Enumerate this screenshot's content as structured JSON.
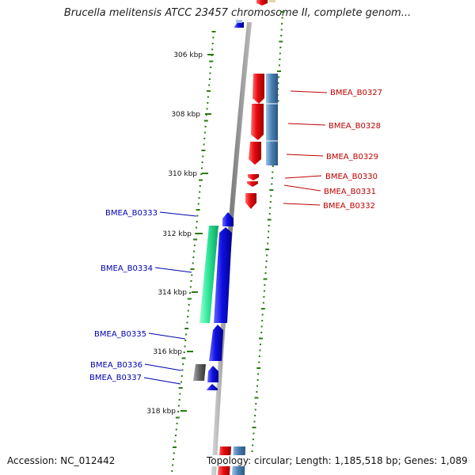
{
  "title": "Brucella melitensis ATCC 23457 chromosome II, complete genom...",
  "footer": {
    "accession": "Accession: NC_012442",
    "summary": "Topology: circular; Length: 1,185,518 bp; Genes: 1,089"
  },
  "ruler": {
    "labels": [
      "306 kbp",
      "308 kbp",
      "310 kbp",
      "312 kbp",
      "314 kbp",
      "316 kbp",
      "318 kbp"
    ]
  },
  "colors": {
    "forward_gene": "#e8090f",
    "forward_cds": "#4b82b4",
    "reverse_gene": "#1010e6",
    "reverse_cds": "#2fe89a",
    "pseudo_cds": "#666666",
    "tick": "#2a7a10",
    "backbone": "#888888",
    "forward_label": "#c00000",
    "reverse_label": "#0000b0"
  },
  "genes_forward": [
    "BMEA_B0327",
    "BMEA_B0328",
    "BMEA_B0329",
    "BMEA_B0330",
    "BMEA_B0331",
    "BMEA_B0332"
  ],
  "genes_reverse": [
    "BMEA_B0333",
    "BMEA_B0334",
    "BMEA_B0335",
    "BMEA_B0336",
    "BMEA_B0337"
  ]
}
